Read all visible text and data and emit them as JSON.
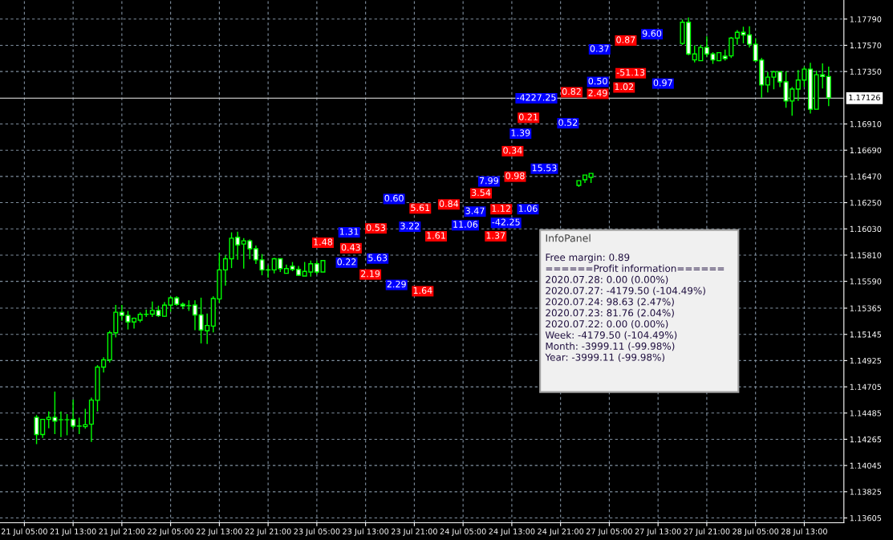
{
  "chart_data": {
    "type": "candlestick",
    "categories": [
      "21 Jul 05:00",
      null,
      null,
      null,
      null,
      null,
      null,
      null,
      "21 Jul 13:00",
      null,
      null,
      null,
      null,
      null,
      null,
      null,
      "21 Jul 21:00",
      null,
      null,
      null,
      null,
      null,
      null,
      null,
      "22 Jul 05:00",
      null,
      null,
      null,
      null,
      null,
      null,
      null,
      "22 Jul 13:00",
      null,
      null,
      null,
      null,
      null,
      null,
      null,
      "22 Jul 21:00",
      null,
      null,
      null,
      null,
      null,
      null,
      null,
      "23 Jul 05:00",
      null,
      null,
      null,
      null,
      null,
      null,
      null,
      "23 Jul 13:00",
      null,
      null,
      null,
      null,
      null,
      null,
      null,
      "23 Jul 21:00",
      null,
      null,
      null,
      null,
      null,
      null,
      null,
      "24 Jul 05:00",
      null,
      null,
      null,
      null,
      null,
      null,
      null,
      "24 Jul 13:00",
      null,
      null,
      null,
      null,
      null,
      null,
      null,
      "24 Jul 21:00",
      null,
      null,
      null,
      null,
      null,
      null,
      null,
      "27 Jul 05:00",
      null,
      null,
      null,
      null,
      null,
      null,
      null,
      "27 Jul 13:00",
      null,
      null,
      null,
      null,
      null,
      null,
      null,
      "27 Jul 21:00",
      null,
      null,
      null,
      null,
      null,
      null,
      null,
      "28 Jul 05:00",
      null,
      null,
      null,
      null,
      null,
      null,
      null,
      "28 Jul 13:00",
      null,
      null,
      null,
      null
    ],
    "ohlc": [
      null,
      null,
      [
        1.14449,
        1.14469,
        1.14225,
        1.14305
      ],
      [
        1.14305,
        1.14432,
        1.14276,
        1.14432
      ],
      [
        1.14432,
        1.14498,
        1.14358,
        1.14449
      ],
      [
        1.14449,
        1.14665,
        1.14309,
        1.14418
      ],
      [
        1.14429,
        1.14498,
        1.14283,
        1.14429
      ],
      [
        1.14429,
        1.14476,
        1.14298,
        1.14429
      ],
      [
        1.14432,
        1.14598,
        1.14354,
        1.14376
      ],
      [
        1.14376,
        1.14447,
        1.14309,
        1.14376
      ],
      [
        1.14372,
        1.1452,
        1.14354,
        1.14387
      ],
      [
        1.14392,
        1.14614,
        1.14243,
        1.14594
      ],
      [
        1.14592,
        1.14887,
        1.14498,
        1.14871
      ],
      [
        1.14871,
        1.14953,
        1.14825,
        1.14931
      ],
      [
        1.14931,
        1.15175,
        1.14909,
        1.15158
      ],
      [
        1.15158,
        1.15393,
        1.1512,
        1.15331
      ],
      [
        1.15331,
        1.15393,
        1.1526,
        1.15304
      ],
      [
        1.15304,
        1.15342,
        1.15186,
        1.15249
      ],
      [
        1.15249,
        1.15286,
        1.15193,
        1.1528
      ],
      [
        1.15264,
        1.1533,
        1.15246,
        1.15313
      ],
      [
        1.15313,
        1.15353,
        1.15291,
        1.15313
      ],
      [
        1.15315,
        1.1542,
        1.15291,
        1.15346
      ],
      [
        1.15346,
        1.15386,
        1.15291,
        1.15302
      ],
      [
        1.15297,
        1.15415,
        1.15291,
        1.15391
      ],
      [
        1.15391,
        1.15464,
        1.15335,
        1.15451
      ],
      [
        1.15451,
        1.15464,
        1.15386,
        1.15397
      ],
      [
        1.15397,
        1.15413,
        1.15357,
        1.15384
      ],
      [
        1.15386,
        1.15431,
        1.15342,
        1.15386
      ],
      [
        1.15391,
        1.15431,
        1.1518,
        1.15308
      ],
      [
        1.15308,
        1.15453,
        1.15069,
        1.15182
      ],
      [
        1.15175,
        1.1532,
        1.15064,
        1.1522
      ],
      [
        1.15215,
        1.15464,
        1.15162,
        1.15446
      ],
      [
        1.15442,
        1.1583,
        1.15408,
        1.15686
      ],
      [
        1.15686,
        1.15808,
        1.15553,
        1.15779
      ],
      [
        1.15779,
        1.16001,
        1.15701,
        1.15952
      ],
      [
        1.15959,
        1.16006,
        1.1577,
        1.15895
      ],
      [
        1.15903,
        1.15952,
        1.15697,
        1.1593
      ],
      [
        1.1593,
        1.15941,
        1.15775,
        1.15863
      ],
      [
        1.15863,
        1.1589,
        1.15735,
        1.1577
      ],
      [
        1.1577,
        1.15819,
        1.15641,
        1.15686
      ],
      [
        1.15686,
        1.15724,
        1.15619,
        1.15686
      ],
      [
        1.15686,
        1.15786,
        1.15657,
        1.15779
      ],
      [
        1.15779,
        1.15783,
        1.15668,
        1.15697
      ],
      [
        1.15657,
        1.1573,
        1.15657,
        1.15697
      ],
      [
        1.15717,
        1.15752,
        1.15675,
        1.1569
      ],
      [
        1.1569,
        1.15719,
        1.15635,
        1.15641
      ],
      [
        1.15635,
        1.15752,
        1.15635,
        1.15673
      ],
      [
        1.15668,
        1.15764,
        1.1563,
        1.15737
      ],
      [
        1.15737,
        1.15764,
        1.15648,
        1.15668
      ],
      [
        1.15668,
        1.15764,
        1.15668,
        1.15764
      ],
      null,
      null,
      null,
      null,
      null,
      null,
      null,
      null,
      null,
      null,
      null,
      null,
      null,
      null,
      null,
      null,
      null,
      null,
      null,
      null,
      null,
      null,
      null,
      null,
      null,
      null,
      null,
      null,
      null,
      null,
      null,
      null,
      null,
      null,
      null,
      null,
      null,
      null,
      null,
      null,
      null,
      [
        1.16395,
        1.16435,
        1.16382,
        1.16435
      ],
      [
        1.16442,
        1.16482,
        1.16415,
        1.16482
      ],
      [
        1.16462,
        1.16495,
        1.16415,
        1.16495
      ],
      null,
      null,
      null,
      null,
      null,
      null,
      null,
      null,
      null,
      null,
      null,
      null,
      null,
      null,
      [
        1.17586,
        1.17786,
        1.17574,
        1.17763
      ],
      [
        1.17763,
        1.17803,
        1.17486,
        1.17497
      ],
      [
        1.17448,
        1.1757,
        1.17426,
        1.17497
      ],
      [
        1.17441,
        1.17574,
        1.17441,
        1.17552
      ],
      [
        1.17552,
        1.17646,
        1.17474,
        1.17497
      ],
      [
        1.17497,
        1.17512,
        1.17414,
        1.17448
      ],
      [
        1.17441,
        1.17512,
        1.17437,
        1.17508
      ],
      [
        1.17479,
        1.17534,
        1.17441,
        1.17459
      ],
      [
        1.17481,
        1.17641,
        1.17463,
        1.1763
      ],
      [
        1.1763,
        1.17697,
        1.17574,
        1.17679
      ],
      [
        1.17679,
        1.17726,
        1.17586,
        1.17657
      ],
      [
        1.17657,
        1.1773,
        1.17552,
        1.17579
      ],
      [
        1.17579,
        1.1763,
        1.1743,
        1.17441
      ],
      [
        1.17446,
        1.17463,
        1.1713,
        1.17237
      ],
      [
        1.17237,
        1.17348,
        1.17174,
        1.17303
      ],
      [
        1.17303,
        1.17357,
        1.17201,
        1.17348
      ],
      [
        1.17348,
        1.17352,
        1.17219,
        1.17263
      ],
      [
        1.17263,
        1.17352,
        1.17046,
        1.17103
      ],
      [
        1.17103,
        1.17219,
        1.16979,
        1.17203
      ],
      [
        1.17203,
        1.17363,
        1.17103,
        1.17279
      ],
      [
        1.17279,
        1.17392,
        1.17219,
        1.1737
      ],
      [
        1.1737,
        1.17423,
        1.16997,
        1.17034
      ],
      [
        1.17034,
        1.17357,
        1.17034,
        1.17323
      ],
      [
        1.17323,
        1.17419,
        1.17208,
        1.17308
      ],
      [
        1.17308,
        1.17392,
        1.17059,
        1.1713
      ]
    ],
    "color": "#00ff00",
    "ylim": [
      1.13565,
      1.1795
    ],
    "yticks": [
      {
        "value": 1.1779,
        "label": "1.17790"
      },
      {
        "value": 1.1757,
        "label": "1.17570"
      },
      {
        "value": 1.1735,
        "label": "1.17350"
      },
      {
        "value": 1.1691,
        "label": "1.16910"
      },
      {
        "value": 1.1669,
        "label": "1.16690"
      },
      {
        "value": 1.1647,
        "label": "1.16470"
      },
      {
        "value": 1.1625,
        "label": "1.16250"
      },
      {
        "value": 1.1603,
        "label": "1.16030"
      },
      {
        "value": 1.1581,
        "label": "1.15810"
      },
      {
        "value": 1.1559,
        "label": "1.15590"
      },
      {
        "value": 1.15365,
        "label": "1.15365"
      },
      {
        "value": 1.15145,
        "label": "1.15145"
      },
      {
        "value": 1.14925,
        "label": "1.14925"
      },
      {
        "value": 1.14705,
        "label": "1.14705"
      },
      {
        "value": 1.14485,
        "label": "1.14485"
      },
      {
        "value": 1.14265,
        "label": "1.14265"
      },
      {
        "value": 1.14045,
        "label": "1.14045"
      },
      {
        "value": 1.13825,
        "label": "1.13825"
      },
      {
        "value": 1.13605,
        "label": "1.13605"
      }
    ],
    "grid": true,
    "ref_lines": [
      {
        "axis": "y",
        "value": 1.17126,
        "label": "1.17126",
        "color": "#c0c0c0"
      }
    ],
    "annotations": [
      "InfoPanel",
      "Free margin: 0.89",
      "======Profit information======",
      "2020.07.28: 0.00 (0.00%)",
      "2020.07.27: -4179.50 (-104.49%)",
      "2020.07.24: 98.63 (2.47%)",
      "2020.07.23: 81.76 (2.04%)",
      "2020.07.22: 0.00 (0.00%)",
      "Week: -4179.50 (-104.49%)",
      "Month: -3999.11 (-99.98%)",
      "Year: -3999.11 (-99.98%)",
      {
        "text": "1.48",
        "y": 1.15914
      },
      {
        "text": "1.31",
        "y": 1.16001
      },
      {
        "text": "0.43",
        "y": 1.15868
      },
      {
        "text": "0.22",
        "y": 1.15747
      },
      {
        "text": "0.53",
        "y": 1.16034
      },
      {
        "text": "5.63",
        "y": 1.15781
      },
      {
        "text": "2.19",
        "y": 1.15647
      },
      {
        "text": "2.29",
        "y": 1.1556
      },
      {
        "text": "1.64",
        "y": 1.15507
      },
      {
        "text": "0.60",
        "y": 1.16281
      },
      {
        "text": "5.61",
        "y": 1.16201
      },
      {
        "text": "3.22",
        "y": 1.16048
      },
      {
        "text": "1.61",
        "y": 1.15968
      },
      {
        "text": "11.06",
        "y": 1.16061
      },
      {
        "text": "0.84",
        "y": 1.16235
      },
      {
        "text": "3.47",
        "y": 1.16175
      },
      {
        "text": "1.12",
        "y": 1.16195
      },
      {
        "text": "-42.25",
        "y": 1.16081
      },
      {
        "text": "1.37",
        "y": 1.15968
      },
      {
        "text": "1.06",
        "y": 1.16195
      },
      {
        "text": "3.54",
        "y": 1.16328
      },
      {
        "text": "7.99",
        "y": 1.16428
      },
      {
        "text": "0.98",
        "y": 1.16468
      },
      {
        "text": "15.53",
        "y": 1.16535
      },
      {
        "text": "0.34",
        "y": 1.16682
      },
      {
        "text": "1.39",
        "y": 1.16829
      },
      {
        "text": "0.21",
        "y": 1.16962
      },
      {
        "text": "-4227.25",
        "y": 1.17126
      },
      {
        "text": "0.82",
        "y": 1.17176
      },
      {
        "text": "0.50",
        "y": 1.17263
      },
      {
        "text": "1.02",
        "y": 1.17216
      },
      {
        "text": "0.52",
        "y": 1.16916
      },
      {
        "text": "-51.13",
        "y": 1.17336
      },
      {
        "text": "0.97",
        "y": 1.17249
      },
      {
        "text": "2.49",
        "y": 1.17163
      },
      {
        "text": "0.37",
        "y": 1.17536
      },
      {
        "text": "0.87",
        "y": 1.1761
      },
      {
        "text": "9.60",
        "y": 1.17663
      }
    ]
  }
}
